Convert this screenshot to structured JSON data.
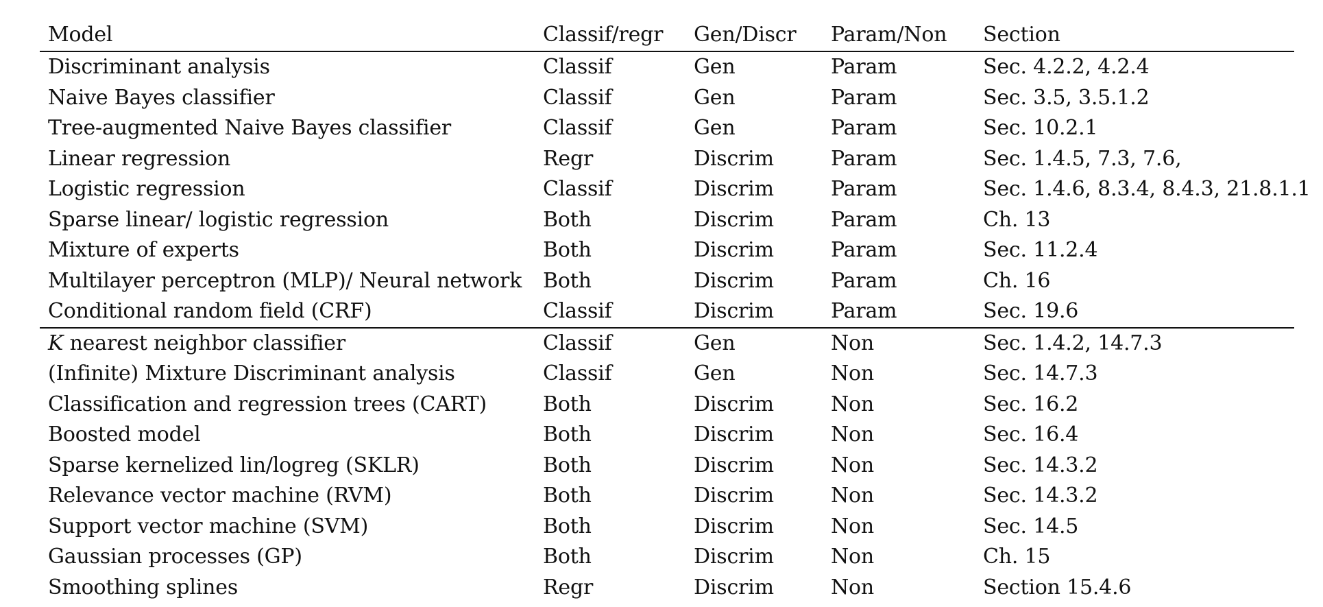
{
  "table": {
    "headers": [
      "Model",
      "Classif/regr",
      "Gen/Discr",
      "Param/Non",
      "Section"
    ],
    "parametric_rows": [
      {
        "model": "Discriminant analysis",
        "task": "Classif",
        "gen": "Gen",
        "param": "Param",
        "section": "Sec. 4.2.2, 4.2.4"
      },
      {
        "model": "Naive Bayes classifier",
        "task": "Classif",
        "gen": "Gen",
        "param": "Param",
        "section": "Sec. 3.5, 3.5.1.2"
      },
      {
        "model": "Tree-augmented Naive Bayes classifier",
        "task": "Classif",
        "gen": "Gen",
        "param": "Param",
        "section": "Sec. 10.2.1"
      },
      {
        "model": "Linear regression",
        "task": "Regr",
        "gen": "Discrim",
        "param": "Param",
        "section": "Sec. 1.4.5, 7.3, 7.6,"
      },
      {
        "model": "Logistic regression",
        "task": "Classif",
        "gen": "Discrim",
        "param": "Param",
        "section": "Sec. 1.4.6, 8.3.4, 8.4.3, 21.8.1.1"
      },
      {
        "model": "Sparse linear/ logistic regression",
        "task": "Both",
        "gen": "Discrim",
        "param": "Param",
        "section": "Ch. 13"
      },
      {
        "model": "Mixture of experts",
        "task": "Both",
        "gen": "Discrim",
        "param": "Param",
        "section": "Sec. 11.2.4"
      },
      {
        "model": "Multilayer perceptron (MLP)/ Neural network",
        "task": "Both",
        "gen": "Discrim",
        "param": "Param",
        "section": "Ch. 16"
      },
      {
        "model": "Conditional random field (CRF)",
        "task": "Classif",
        "gen": "Discrim",
        "param": "Param",
        "section": "Sec. 19.6"
      }
    ],
    "nonparametric_rows": [
      {
        "model_var": "K",
        "model": "nearest neighbor classifier",
        "task": "Classif",
        "gen": "Gen",
        "param": "Non",
        "section": "Sec. 1.4.2, 14.7.3"
      },
      {
        "model": "(Infinite) Mixture Discriminant analysis",
        "task": "Classif",
        "gen": "Gen",
        "param": "Non",
        "section": "Sec. 14.7.3"
      },
      {
        "model": "Classification and regression trees (CART)",
        "task": "Both",
        "gen": "Discrim",
        "param": "Non",
        "section": "Sec. 16.2"
      },
      {
        "model": "Boosted model",
        "task": "Both",
        "gen": "Discrim",
        "param": "Non",
        "section": "Sec. 16.4"
      },
      {
        "model": "Sparse kernelized lin/logreg (SKLR)",
        "task": "Both",
        "gen": "Discrim",
        "param": "Non",
        "section": "Sec. 14.3.2"
      },
      {
        "model": "Relevance vector machine (RVM)",
        "task": "Both",
        "gen": "Discrim",
        "param": "Non",
        "section": "Sec. 14.3.2"
      },
      {
        "model": "Support vector machine (SVM)",
        "task": "Both",
        "gen": "Discrim",
        "param": "Non",
        "section": "Sec. 14.5"
      },
      {
        "model": "Gaussian processes (GP)",
        "task": "Both",
        "gen": "Discrim",
        "param": "Non",
        "section": "Ch. 15"
      },
      {
        "model": "Smoothing splines",
        "task": "Regr",
        "gen": "Discrim",
        "param": "Non",
        "section": "Section 15.4.6"
      }
    ]
  }
}
